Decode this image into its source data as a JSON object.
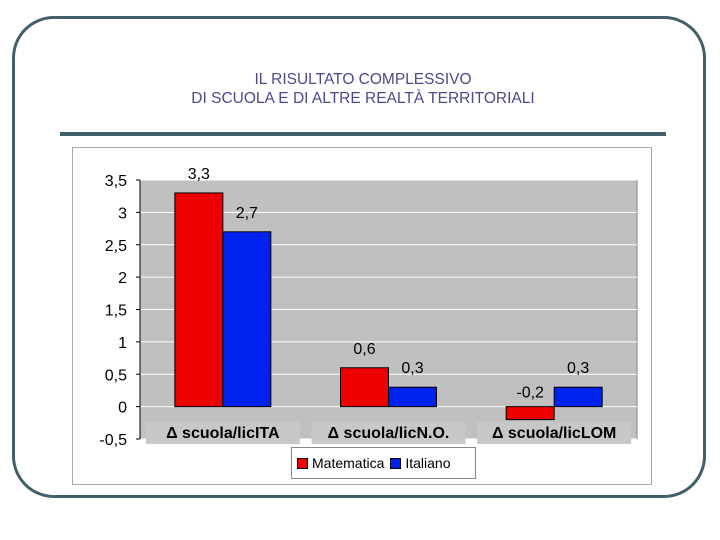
{
  "slide": {
    "title_line1": "IL RISULTATO COMPLESSIVO",
    "title_line2": "DI SCUOLA E DI ALTRE REALTÀ TERRITORIALI"
  },
  "chart_data": {
    "type": "bar",
    "categories": [
      "Δ scuola/licITA",
      "Δ scuola/licN.O.",
      "Δ scuola/licLOM"
    ],
    "series": [
      {
        "name": "Matematica",
        "values": [
          3.3,
          0.6,
          -0.2
        ],
        "labels": [
          "3,3",
          "0,6",
          "-0,2"
        ],
        "color": "#ee0000"
      },
      {
        "name": "Italiano",
        "values": [
          2.7,
          0.3,
          0.3
        ],
        "labels": [
          "2,7",
          "0,3",
          "0,3"
        ],
        "color": "#0022ee"
      }
    ],
    "yticks": [
      -0.5,
      0,
      0.5,
      1,
      1.5,
      2,
      2.5,
      3,
      3.5
    ],
    "ytick_labels": [
      "-0,5",
      "0",
      "0,5",
      "1",
      "1,5",
      "2",
      "2,5",
      "3",
      "3,5"
    ],
    "ylim": [
      -0.5,
      3.5
    ],
    "grid": true,
    "legend_position": "bottom",
    "plot_background": "#c0c0c0",
    "category_label_background": "#c8c8c8"
  }
}
